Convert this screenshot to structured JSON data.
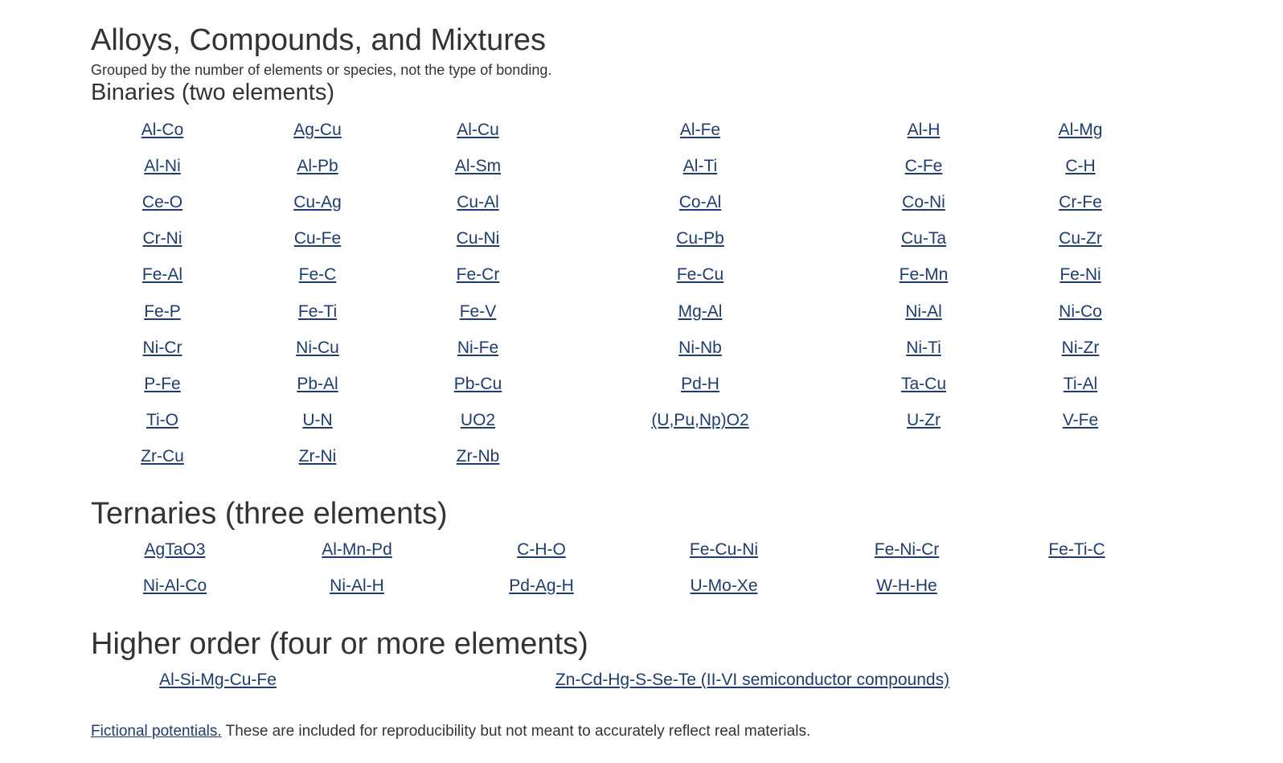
{
  "header": {
    "title": "Alloys, Compounds, and Mixtures",
    "subtitle": "Grouped by the number of elements or species, not the type of bonding."
  },
  "binaries": {
    "heading": "Binaries (two elements)",
    "items": [
      "Al-Co",
      "Ag-Cu",
      "Al-Cu",
      "Al-Fe",
      "Al-H",
      "Al-Mg",
      "Al-Ni",
      "Al-Pb",
      "Al-Sm",
      "Al-Ti",
      "C-Fe",
      "C-H",
      "Ce-O",
      "Cu-Ag",
      "Cu-Al",
      "Co-Al",
      "Co-Ni",
      "Cr-Fe",
      "Cr-Ni",
      "Cu-Fe",
      "Cu-Ni",
      "Cu-Pb",
      "Cu-Ta",
      "Cu-Zr",
      "Fe-Al",
      "Fe-C",
      "Fe-Cr",
      "Fe-Cu",
      "Fe-Mn",
      "Fe-Ni",
      "Fe-P",
      "Fe-Ti",
      "Fe-V",
      "Mg-Al",
      "Ni-Al",
      "Ni-Co",
      "Ni-Cr",
      "Ni-Cu",
      "Ni-Fe",
      "Ni-Nb",
      "Ni-Ti",
      "Ni-Zr",
      "P-Fe",
      "Pb-Al",
      "Pb-Cu",
      "Pd-H",
      "Ta-Cu",
      "Ti-Al",
      "Ti-O",
      "U-N",
      "UO2",
      "(U,Pu,Np)O2",
      "U-Zr",
      "V-Fe",
      "Zr-Cu",
      "Zr-Ni",
      "Zr-Nb"
    ]
  },
  "ternaries": {
    "heading": "Ternaries (three elements)",
    "items": [
      "AgTaO3",
      "Al-Mn-Pd",
      "C-H-O",
      "Fe-Cu-Ni",
      "Fe-Ni-Cr",
      "Fe-Ti-C",
      "Ni-Al-Co",
      "Ni-Al-H",
      "Pd-Ag-H",
      "U-Mo-Xe",
      "W-H-He"
    ]
  },
  "higher": {
    "heading": "Higher order (four or more elements)",
    "items": [
      "Al-Si-Mg-Cu-Fe",
      "Zn-Cd-Hg-S-Se-Te (II-VI semiconductor compounds)"
    ]
  },
  "footnote": {
    "link_label": "Fictional potentials.",
    "text": " These are included for reproducibility but not meant to accurately reflect real materials."
  }
}
